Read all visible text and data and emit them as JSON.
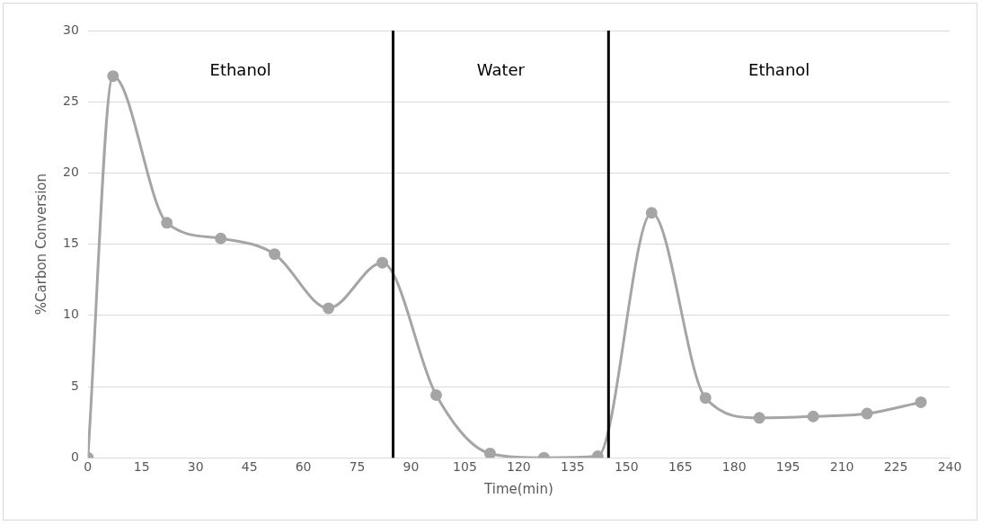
{
  "chart_data": {
    "type": "line",
    "xlabel": "Time(min)",
    "ylabel": "%Carbon Conversion",
    "x": [
      0,
      7,
      22,
      37,
      52,
      67,
      82,
      97,
      112,
      127,
      142,
      157,
      172,
      187,
      202,
      217,
      232
    ],
    "series": [
      {
        "color": "#a5a5a5",
        "values": [
          0,
          26.8,
          16.5,
          15.4,
          14.3,
          10.5,
          13.7,
          4.4,
          0.3,
          0,
          0.1,
          17.2,
          4.2,
          2.8,
          2.9,
          3.1,
          3.9
        ]
      }
    ],
    "xlim": [
      0,
      240
    ],
    "xticks": [
      0,
      15,
      30,
      45,
      60,
      75,
      90,
      105,
      120,
      135,
      150,
      165,
      180,
      195,
      210,
      225,
      240
    ],
    "ylim": [
      0,
      30
    ],
    "yticks": [
      0,
      5,
      10,
      15,
      20,
      25,
      30
    ],
    "grid": "y",
    "legend": false,
    "marker": "circle",
    "line_style": "solid",
    "ref_lines": [
      {
        "axis": "x",
        "value": 85,
        "color": "#000000"
      },
      {
        "axis": "x",
        "value": 145,
        "color": "#000000"
      }
    ],
    "annotations": [
      "Ethanol",
      "Water",
      "Ethanol"
    ]
  }
}
